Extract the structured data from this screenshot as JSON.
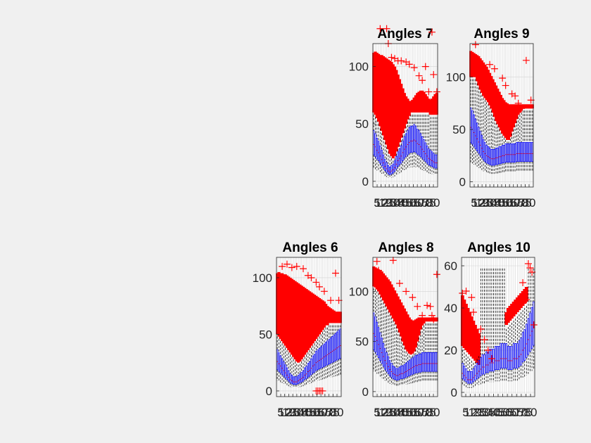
{
  "figure": {
    "background": "#f0f0f0"
  },
  "colors": {
    "box": "#0000ff",
    "outlier": "#ff0000",
    "whisker": "#000000",
    "grid": "#d4d4d4",
    "axis": "#262626"
  },
  "chart_data": [
    {
      "type": "boxplot",
      "title": "Angles 7",
      "ylim": [
        -5,
        120
      ],
      "yticks": [
        0,
        50,
        100
      ],
      "xtick_labels": [
        "5",
        "12",
        "19",
        "25",
        "30",
        "35",
        "40",
        "45",
        "50",
        "55",
        "60",
        "65",
        "70",
        "75",
        "80"
      ],
      "n_boxes": 40,
      "grid": true,
      "series": [
        {
          "role": "median",
          "values": [
            32,
            30,
            27,
            25,
            22,
            19,
            16,
            13,
            11,
            9,
            8,
            9,
            10,
            12,
            15,
            18,
            20,
            22,
            25,
            28,
            30,
            32,
            34,
            35,
            35,
            36,
            35,
            33,
            32,
            30,
            28,
            26,
            24,
            22,
            20,
            19,
            18,
            17,
            16,
            16
          ]
        },
        {
          "role": "outlier-top",
          "values": [
            112,
            113,
            112,
            111,
            110,
            110,
            109,
            108,
            107,
            106,
            105,
            104,
            102,
            100,
            97,
            93,
            89,
            85,
            81,
            77,
            74,
            72,
            70,
            70,
            71,
            73,
            75,
            77,
            78,
            79,
            79,
            78,
            76,
            74,
            72,
            71,
            72,
            74,
            76,
            77
          ]
        },
        {
          "role": "outlier-bottom",
          "values": [
            60,
            58,
            55,
            52,
            48,
            44,
            40,
            36,
            32,
            28,
            24,
            22,
            20,
            22,
            26,
            30,
            34,
            38,
            42,
            46,
            50,
            54,
            57,
            60,
            60,
            60,
            60,
            60,
            60,
            60,
            60,
            60,
            60,
            60,
            60,
            58,
            58,
            58,
            58,
            58
          ]
        },
        {
          "role": "sparse-outliers",
          "points": [
            [
              4,
              133
            ],
            [
              8,
              133
            ],
            [
              9,
              120
            ],
            [
              11,
              108
            ],
            [
              13,
              107
            ],
            [
              15,
              105
            ],
            [
              17,
              105
            ],
            [
              20,
              104
            ],
            [
              22,
              102
            ],
            [
              25,
              99
            ],
            [
              28,
              92
            ],
            [
              30,
              88
            ],
            [
              32,
              100
            ],
            [
              34,
              78
            ],
            [
              36,
              130
            ],
            [
              37,
              93
            ],
            [
              39,
              78
            ]
          ]
        }
      ]
    },
    {
      "type": "boxplot",
      "title": "Angles 9",
      "ylim": [
        -5,
        132
      ],
      "yticks": [
        0,
        50,
        100
      ],
      "xtick_labels": [
        "5",
        "12",
        "19",
        "25",
        "30",
        "35",
        "40",
        "45",
        "50",
        "55",
        "60",
        "65",
        "70",
        "75",
        "80"
      ],
      "n_boxes": 40,
      "grid": true,
      "series": [
        {
          "role": "median",
          "values": [
            52,
            50,
            47,
            44,
            41,
            38,
            35,
            32,
            29,
            27,
            25,
            24,
            23,
            22,
            22,
            22,
            23,
            23,
            24,
            24,
            25,
            25,
            26,
            26,
            26,
            26,
            26,
            26,
            26,
            27,
            27,
            27,
            27,
            27,
            27,
            27,
            27,
            27,
            27,
            27
          ]
        },
        {
          "role": "outlier-top",
          "values": [
            125,
            124,
            123,
            122,
            121,
            120,
            118,
            116,
            114,
            112,
            110,
            107,
            104,
            101,
            98,
            95,
            92,
            89,
            86,
            83,
            80,
            78,
            76,
            75,
            74,
            74,
            74,
            74,
            74,
            74,
            74,
            74,
            74,
            74,
            74,
            74,
            74,
            74,
            74,
            74
          ]
        },
        {
          "role": "outlier-bottom",
          "values": [
            100,
            100,
            100,
            100,
            96,
            92,
            88,
            85,
            82,
            80,
            78,
            76,
            73,
            70,
            66,
            62,
            58,
            55,
            52,
            49,
            46,
            44,
            42,
            40,
            40,
            43,
            48,
            52,
            56,
            60,
            64,
            66,
            68,
            70,
            70,
            70,
            70,
            70,
            70,
            70
          ]
        },
        {
          "role": "sparse-outliers",
          "points": [
            [
              3,
              131
            ],
            [
              12,
              112
            ],
            [
              15,
              108
            ],
            [
              20,
              99
            ],
            [
              22,
              92
            ],
            [
              26,
              84
            ],
            [
              28,
              82
            ],
            [
              30,
              75
            ],
            [
              32,
              70
            ],
            [
              35,
              116
            ],
            [
              38,
              78
            ]
          ]
        }
      ]
    },
    {
      "type": "boxplot",
      "title": "Angles 6",
      "ylim": [
        -5,
        118
      ],
      "yticks": [
        0,
        50,
        100
      ],
      "xtick_labels": [
        "5",
        "12",
        "19",
        "25",
        "30",
        "35",
        "40",
        "45",
        "50",
        "55",
        "60",
        "65",
        "70",
        "75",
        "80"
      ],
      "n_boxes": 40,
      "grid": true,
      "series": [
        {
          "role": "median",
          "values": [
            26,
            24,
            22,
            20,
            18,
            16,
            14,
            12,
            10,
            9,
            8,
            8,
            8,
            9,
            10,
            11,
            12,
            14,
            15,
            17,
            18,
            20,
            22,
            23,
            25,
            26,
            27,
            28,
            29,
            30,
            31,
            32,
            33,
            34,
            35,
            36,
            37,
            38,
            39,
            40
          ]
        },
        {
          "role": "outlier-top",
          "values": [
            104,
            105,
            104,
            104,
            103,
            103,
            102,
            101,
            100,
            99,
            98,
            97,
            96,
            95,
            94,
            93,
            92,
            91,
            90,
            89,
            88,
            87,
            86,
            85,
            84,
            83,
            82,
            81,
            80,
            79,
            77,
            75,
            74,
            73,
            72,
            71,
            70,
            70,
            70,
            70
          ]
        },
        {
          "role": "outlier-bottom",
          "values": [
            50,
            48,
            46,
            44,
            42,
            40,
            38,
            36,
            34,
            32,
            30,
            28,
            26,
            25,
            26,
            28,
            30,
            32,
            34,
            36,
            38,
            40,
            42,
            44,
            46,
            48,
            50,
            52,
            54,
            56,
            58,
            58,
            60,
            60,
            60,
            60,
            60,
            60,
            60,
            60
          ]
        },
        {
          "role": "sparse-outliers",
          "points": [
            [
              3,
              110
            ],
            [
              6,
              112
            ],
            [
              9,
              109
            ],
            [
              12,
              110
            ],
            [
              16,
              108
            ],
            [
              19,
              102
            ],
            [
              21,
              100
            ],
            [
              24,
              96
            ],
            [
              26,
              92
            ],
            [
              29,
              88
            ],
            [
              33,
              80
            ],
            [
              36,
              104
            ],
            [
              38,
              80
            ]
          ]
        },
        {
          "role": "low-outliers",
          "points": [
            [
              24,
              0
            ],
            [
              25,
              0
            ],
            [
              26,
              0
            ],
            [
              27,
              0
            ],
            [
              28,
              0
            ]
          ]
        }
      ]
    },
    {
      "type": "boxplot",
      "title": "Angles 8",
      "ylim": [
        -5,
        134
      ],
      "yticks": [
        0,
        50,
        100
      ],
      "xtick_labels": [
        "5",
        "12",
        "19",
        "25",
        "30",
        "35",
        "40",
        "45",
        "50",
        "55",
        "60",
        "65",
        "70",
        "75",
        "80"
      ],
      "n_boxes": 40,
      "grid": true,
      "series": [
        {
          "role": "median",
          "values": [
            58,
            55,
            51,
            47,
            43,
            39,
            35,
            31,
            28,
            25,
            22,
            20,
            18,
            17,
            16,
            16,
            17,
            18,
            18,
            19,
            20,
            21,
            22,
            23,
            24,
            25,
            26,
            26,
            27,
            27,
            28,
            28,
            28,
            28,
            28,
            28,
            28,
            28,
            28,
            28
          ]
        },
        {
          "role": "outlier-top",
          "values": [
            125,
            124,
            123,
            122,
            121,
            120,
            118,
            116,
            114,
            112,
            110,
            107,
            104,
            101,
            98,
            95,
            92,
            89,
            86,
            83,
            80,
            77,
            74,
            72,
            71,
            71,
            72,
            73,
            74,
            74,
            74,
            74,
            74,
            74,
            74,
            74,
            74,
            74,
            74,
            74
          ]
        },
        {
          "role": "outlier-bottom",
          "values": [
            105,
            104,
            102,
            100,
            97,
            94,
            91,
            88,
            85,
            82,
            79,
            76,
            73,
            70,
            67,
            63,
            59,
            55,
            50,
            46,
            42,
            40,
            38,
            37,
            38,
            40,
            44,
            50,
            56,
            62,
            66,
            68,
            70,
            70,
            70,
            70,
            70,
            70,
            70,
            70
          ]
        },
        {
          "role": "sparse-outliers",
          "points": [
            [
              2,
              130
            ],
            [
              3,
              121
            ],
            [
              12,
              131
            ],
            [
              16,
              108
            ],
            [
              20,
              100
            ],
            [
              24,
              94
            ],
            [
              27,
              85
            ],
            [
              30,
              76
            ],
            [
              33,
              86
            ],
            [
              35,
              85
            ],
            [
              36,
              76
            ],
            [
              37,
              72
            ],
            [
              39,
              117
            ]
          ]
        }
      ]
    },
    {
      "type": "boxplot",
      "title": "Angles 10",
      "ylim": [
        -2,
        64
      ],
      "yticks": [
        0,
        20,
        40,
        60
      ],
      "xtick_labels": [
        "5",
        "12",
        "19",
        "25",
        "30",
        "35",
        "40",
        "45",
        "50",
        "55",
        "60",
        "65",
        "70",
        "75",
        "80"
      ],
      "n_boxes": 40,
      "grid": true,
      "series": [
        {
          "role": "median",
          "values": [
            9,
            8,
            7,
            6,
            6,
            6,
            7,
            8,
            9,
            10,
            11,
            12,
            12,
            13,
            13,
            14,
            14,
            14,
            15,
            15,
            15,
            16,
            16,
            16,
            16,
            15,
            15,
            15,
            16,
            16,
            16,
            17,
            18,
            20,
            21,
            23,
            25,
            27,
            29,
            31
          ]
        },
        {
          "role": "outlier-top",
          "values": [
            46,
            44,
            42,
            40,
            38,
            36,
            34,
            32,
            30,
            28,
            0,
            0,
            0,
            0,
            0,
            0,
            0,
            0,
            0,
            0,
            0,
            0,
            0,
            0,
            38,
            40,
            41,
            42,
            43,
            44,
            45,
            46,
            47,
            48,
            49,
            50,
            0,
            0,
            0,
            0
          ]
        },
        {
          "role": "outlier-bottom",
          "values": [
            22,
            21,
            20,
            19,
            18,
            17,
            16,
            15,
            14,
            13,
            0,
            0,
            0,
            0,
            0,
            0,
            0,
            0,
            0,
            0,
            0,
            0,
            0,
            0,
            32,
            33,
            34,
            35,
            36,
            37,
            38,
            39,
            40,
            41,
            42,
            43,
            0,
            0,
            0,
            0
          ]
        },
        {
          "role": "sparse-outliers",
          "points": [
            [
              0,
              47
            ],
            [
              2,
              48
            ],
            [
              5,
              45
            ],
            [
              6,
              38
            ],
            [
              10,
              30
            ],
            [
              12,
              25
            ],
            [
              14,
              20
            ],
            [
              16,
              16
            ],
            [
              30,
              43
            ],
            [
              33,
              52
            ],
            [
              35,
              44
            ],
            [
              36,
              61
            ],
            [
              37,
              59
            ],
            [
              38,
              57
            ],
            [
              39,
              32
            ]
          ]
        }
      ]
    }
  ]
}
